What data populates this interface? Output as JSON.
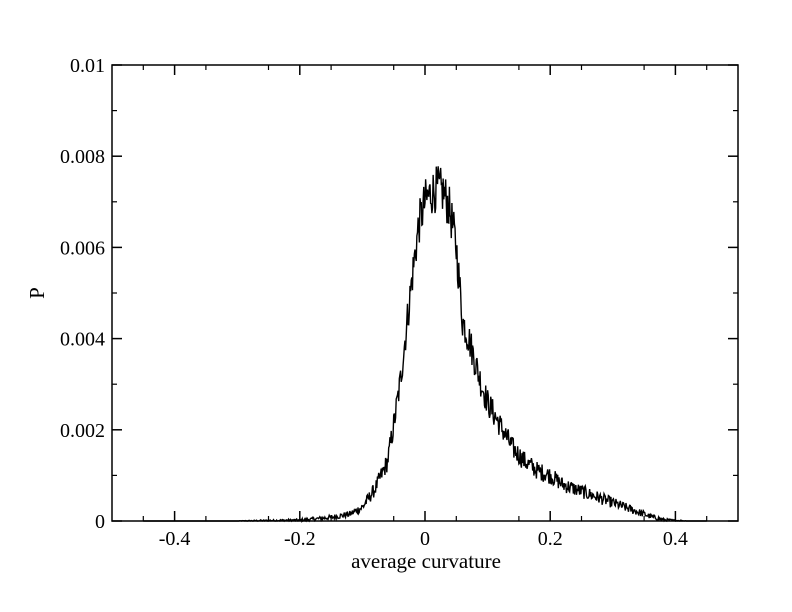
{
  "chart_data": {
    "type": "line",
    "title": "",
    "xlabel": "average curvature",
    "ylabel": "P",
    "xlim": [
      -0.5,
      0.5
    ],
    "ylim": [
      0,
      0.01
    ],
    "x_ticks": [
      -0.4,
      -0.2,
      0,
      0.2,
      0.4
    ],
    "x_tick_labels": [
      "-0.4",
      "-0.2",
      "0",
      "0.2",
      "0.4"
    ],
    "y_ticks": [
      0,
      0.002,
      0.004,
      0.006,
      0.008,
      0.01
    ],
    "y_tick_labels": [
      "0",
      "0.002",
      "0.004",
      "0.006",
      "0.008",
      "0.01"
    ],
    "grid": false,
    "legend": "none",
    "series": [
      {
        "color": "#000000",
        "x": [
          -0.45,
          -0.35,
          -0.3,
          -0.25,
          -0.2,
          -0.18,
          -0.15,
          -0.12,
          -0.1,
          -0.08,
          -0.06,
          -0.05,
          -0.04,
          -0.03,
          -0.02,
          -0.01,
          0.0,
          0.01,
          0.02,
          0.03,
          0.04,
          0.05,
          0.06,
          0.07,
          0.08,
          0.09,
          0.1,
          0.12,
          0.14,
          0.16,
          0.18,
          0.2,
          0.22,
          0.24,
          0.26,
          0.28,
          0.3,
          0.32,
          0.34,
          0.36,
          0.38,
          0.4,
          0.42,
          0.45
        ],
        "y": [
          0.0,
          0.0,
          0.0,
          1e-05,
          2e-05,
          4e-05,
          8e-05,
          0.00015,
          0.0003,
          0.0007,
          0.0013,
          0.0021,
          0.003,
          0.0042,
          0.0054,
          0.0065,
          0.007,
          0.0072,
          0.0073,
          0.0072,
          0.0068,
          0.006,
          0.0044,
          0.004,
          0.0035,
          0.003,
          0.0026,
          0.0021,
          0.0016,
          0.0013,
          0.0011,
          0.001,
          0.0008,
          0.0007,
          0.0006,
          0.0005,
          0.0004,
          0.0003,
          0.0002,
          0.0001,
          3e-05,
          1e-05,
          0.0,
          0.0
        ]
      }
    ]
  }
}
